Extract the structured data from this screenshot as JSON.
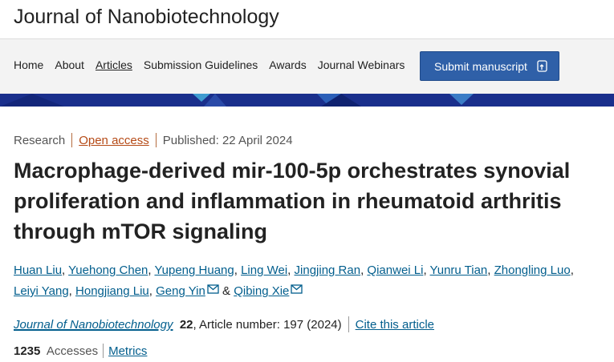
{
  "header": {
    "title": "Journal of Nanobiotechnology"
  },
  "nav": {
    "links": [
      "Home",
      "About",
      "Articles",
      "Submission Guidelines",
      "Awards",
      "Journal Webinars"
    ],
    "active": 2,
    "button": "Submit manuscript"
  },
  "article": {
    "type": "Research",
    "access": "Open access",
    "published": "Published: 22 April 2024",
    "title": "Macrophage-derived mir-100-5p orchestrates synovial proliferation and inflammation in rheumatoid arthritis through mTOR signaling",
    "authors": [
      {
        "name": "Huan Liu",
        "email": false
      },
      {
        "name": "Yuehong Chen",
        "email": false
      },
      {
        "name": "Yupeng Huang",
        "email": false
      },
      {
        "name": "Ling Wei",
        "email": false
      },
      {
        "name": "Jingjing Ran",
        "email": false
      },
      {
        "name": "Qianwei Li",
        "email": false
      },
      {
        "name": "Yunru Tian",
        "email": false
      },
      {
        "name": "Zhongling Luo",
        "email": false
      },
      {
        "name": "Leiyi Yang",
        "email": false
      },
      {
        "name": "Hongjiang Liu",
        "email": false
      },
      {
        "name": "Geng Yin",
        "email": true
      },
      {
        "name": "Qibing Xie",
        "email": true
      }
    ],
    "separator": ",",
    "final_separator": "&",
    "journal": "Journal of Nanobiotechnology",
    "volume": "22",
    "article_number": "Article number: 197 (2024)",
    "cite": "Cite this article",
    "accesses": 1235,
    "accesses_label": "Accesses",
    "metrics": "Metrics"
  }
}
